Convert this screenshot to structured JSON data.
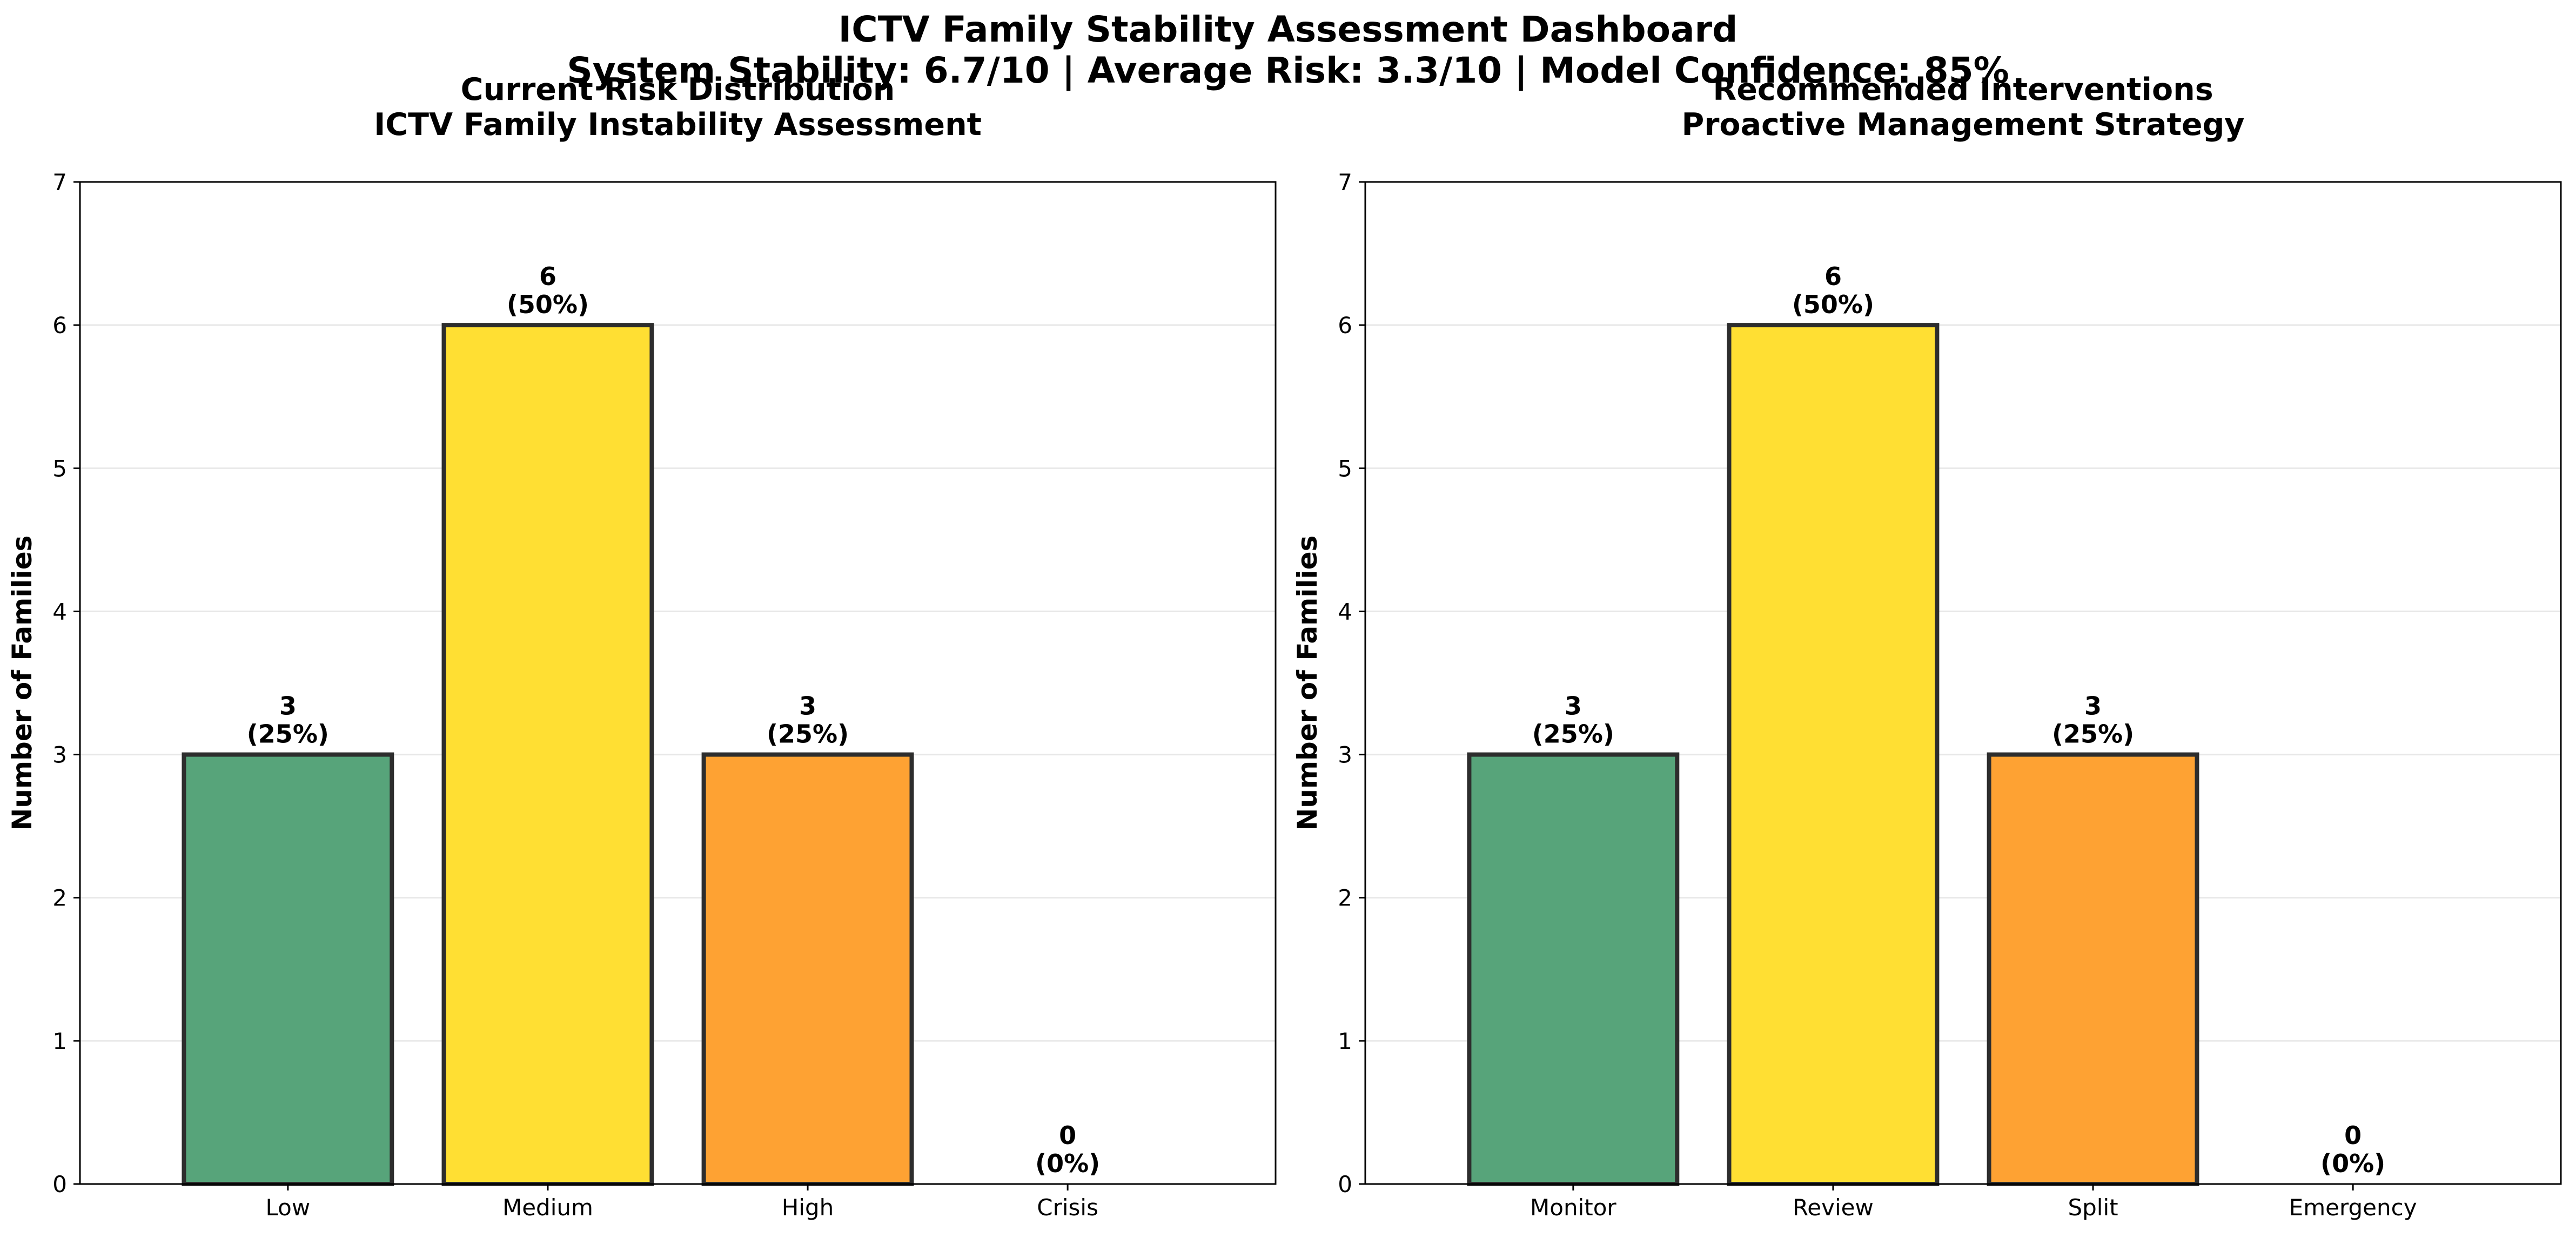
{
  "header": {
    "title": "ICTV Family Stability Assessment Dashboard",
    "subtitle": "System Stability: 6.7/10 | Average Risk: 3.3/10 | Model Confidence: 85%"
  },
  "colors": {
    "low": "#57a47a",
    "medium": "#ffdf33",
    "high": "#fea233",
    "crisis": "#d8393c",
    "bar_edge": "#2d2d2d"
  },
  "chart_data": [
    {
      "type": "bar",
      "title": "Current Risk Distribution",
      "subtitle": "ICTV Family Instability Assessment",
      "categories": [
        "Low",
        "Medium",
        "High",
        "Crisis"
      ],
      "values": [
        3,
        6,
        3,
        0
      ],
      "value_labels": [
        "3\n(25%)",
        "6\n(50%)",
        "3\n(25%)",
        "0\n(0%)"
      ],
      "colors": [
        "#57a47a",
        "#ffdf33",
        "#fea233",
        "#d8393c"
      ],
      "xlabel": "",
      "ylabel": "Number of Families",
      "ylim": [
        0,
        7
      ],
      "yticks": [
        0,
        1,
        2,
        3,
        4,
        5,
        6,
        7
      ],
      "grid": true
    },
    {
      "type": "bar",
      "title": "Recommended Interventions",
      "subtitle": "Proactive Management Strategy",
      "categories": [
        "Monitor",
        "Review",
        "Split",
        "Emergency"
      ],
      "values": [
        3,
        6,
        3,
        0
      ],
      "value_labels": [
        "3\n(25%)",
        "6\n(50%)",
        "3\n(25%)",
        "0\n(0%)"
      ],
      "colors": [
        "#57a47a",
        "#ffdf33",
        "#fea233",
        "#d8393c"
      ],
      "xlabel": "",
      "ylabel": "Number of Families",
      "ylim": [
        0,
        7
      ],
      "yticks": [
        0,
        1,
        2,
        3,
        4,
        5,
        6,
        7
      ],
      "grid": true
    }
  ]
}
